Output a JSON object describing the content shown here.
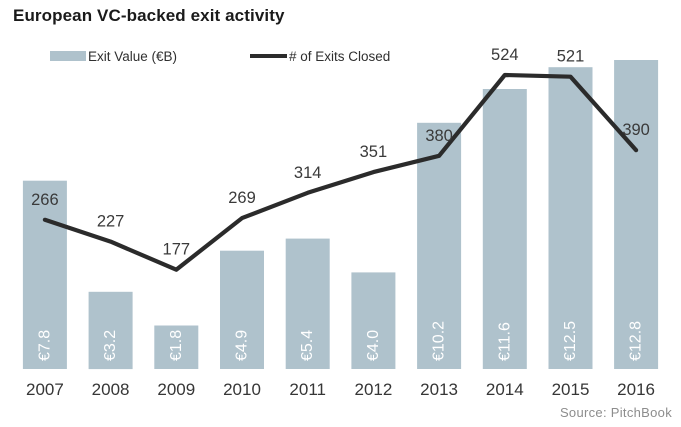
{
  "title": "European VC-backed exit activity",
  "legend": [
    {
      "label": "Exit Value (€B)",
      "swatch": "bar-swatch-icon"
    },
    {
      "label": "# of Exits Closed",
      "swatch": "line-swatch-icon"
    }
  ],
  "source": "Source: PitchBook",
  "colors": {
    "bar": "#afc2cc",
    "line": "#2b2b2b",
    "bar_label": "#ffffff",
    "value_label_text": "#3a3a3a",
    "axis_text": "#363636",
    "title_text": "#1a1a1a",
    "legend_text": "#2f2f2f",
    "source_text": "#8d8d8d"
  },
  "chart_data": {
    "type": "bar+line",
    "title": "European VC-backed exit activity",
    "categories": [
      "2007",
      "2008",
      "2009",
      "2010",
      "2011",
      "2012",
      "2013",
      "2014",
      "2015",
      "2016"
    ],
    "series": [
      {
        "name": "Exit Value (€B)",
        "type": "bar",
        "values": [
          7.8,
          3.2,
          1.8,
          4.9,
          5.4,
          4.0,
          10.2,
          11.6,
          12.5,
          12.8
        ],
        "labels": [
          "€7.8",
          "€3.2",
          "€1.8",
          "€4.9",
          "€5.4",
          "€4.0",
          "€10.2",
          "€11.6",
          "€12.5",
          "€12.8"
        ]
      },
      {
        "name": "# of Exits Closed",
        "type": "line",
        "values": [
          266,
          227,
          177,
          269,
          314,
          351,
          380,
          524,
          521,
          390
        ],
        "labels": [
          "266",
          "227",
          "177",
          "269",
          "314",
          "351",
          "380",
          "524",
          "521",
          "390"
        ]
      }
    ],
    "bar_axis": {
      "min": 0
    },
    "line_axis": {
      "min": 0
    },
    "grid": false,
    "legend_position": "top",
    "xlabel": "",
    "ylabel": "",
    "source": "Source: PitchBook"
  }
}
